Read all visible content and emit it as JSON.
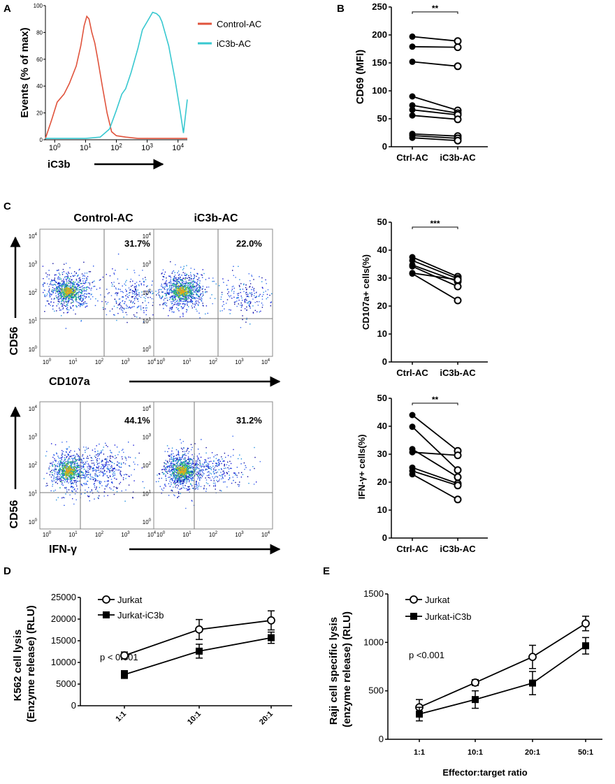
{
  "panels": {
    "A": {
      "label": "A"
    },
    "B": {
      "label": "B"
    },
    "C": {
      "label": "C"
    },
    "D": {
      "label": "D"
    },
    "E": {
      "label": "E"
    }
  },
  "colors": {
    "control": "#e0533c",
    "ic3b": "#38c8d0",
    "black": "#000000"
  },
  "chart_data": [
    {
      "id": "A",
      "type": "line",
      "title": "",
      "xlabel": "iC3b",
      "ylabel": "Events (% of max)",
      "xscale": "log",
      "xlim": [
        0.5,
        20000
      ],
      "ylim": [
        0,
        100
      ],
      "yticks": [
        "0",
        "20",
        "40",
        "60",
        "80",
        "100"
      ],
      "xticks": [
        "10^0",
        "10^1",
        "10^2",
        "10^3",
        "10^4"
      ],
      "legend": [
        "Control-AC",
        "iC3b-AC"
      ],
      "legend_position": "right",
      "series": [
        {
          "name": "Control-AC",
          "color": "#e0533c",
          "x": [
            0.5,
            0.8,
            1.2,
            2,
            3,
            5,
            7,
            9,
            11,
            13,
            16,
            20,
            25,
            35,
            50,
            70,
            100,
            200,
            500,
            1000,
            5000,
            20000
          ],
          "y": [
            1,
            15,
            28,
            34,
            42,
            55,
            70,
            85,
            92,
            90,
            80,
            72,
            60,
            40,
            20,
            6,
            3,
            2,
            1,
            1,
            1,
            1
          ]
        },
        {
          "name": "iC3b-AC",
          "color": "#38c8d0",
          "x": [
            0.5,
            1,
            10,
            30,
            60,
            100,
            150,
            200,
            300,
            500,
            700,
            1000,
            1500,
            2000,
            2500,
            3000,
            5000,
            8000,
            12000,
            15000,
            20000
          ],
          "y": [
            1,
            1,
            1,
            2,
            8,
            22,
            34,
            38,
            50,
            68,
            82,
            88,
            95,
            94,
            92,
            88,
            70,
            45,
            20,
            5,
            30
          ]
        }
      ]
    },
    {
      "id": "B",
      "type": "scatter",
      "title": "",
      "ylabel": "CD69 (MFI)",
      "categories": [
        "Ctrl-AC",
        "iC3b-AC"
      ],
      "ylim": [
        0,
        250
      ],
      "yticks": [
        "0",
        "50",
        "100",
        "150",
        "200",
        "250"
      ],
      "significance": "**",
      "pairs": [
        [
          197,
          189
        ],
        [
          179,
          178
        ],
        [
          152,
          144
        ],
        [
          90,
          65
        ],
        [
          74,
          60
        ],
        [
          66,
          57
        ],
        [
          56,
          49
        ],
        [
          23,
          19
        ],
        [
          20,
          15
        ],
        [
          16,
          11
        ]
      ]
    },
    {
      "id": "C-CD107a",
      "type": "scatter",
      "title": "",
      "ylabel": "CD107a+ cells(%)",
      "categories": [
        "Ctrl-AC",
        "iC3b-AC"
      ],
      "ylim": [
        0,
        50
      ],
      "yticks": [
        "0",
        "10",
        "20",
        "30",
        "40",
        "50"
      ],
      "significance": "***",
      "pairs": [
        [
          37.5,
          30.5
        ],
        [
          36.3,
          29.8
        ],
        [
          34.7,
          28.8
        ],
        [
          34.2,
          27.0
        ],
        [
          31.8,
          29.4
        ],
        [
          31.6,
          22.0
        ]
      ]
    },
    {
      "id": "C-IFNg",
      "type": "scatter",
      "title": "",
      "ylabel": "IFN-γ+ cells(%)",
      "categories": [
        "Ctrl-AC",
        "iC3b-AC"
      ],
      "ylim": [
        0,
        50
      ],
      "yticks": [
        "0",
        "10",
        "20",
        "30",
        "40",
        "50"
      ],
      "significance": "**",
      "pairs": [
        [
          44.0,
          31.2
        ],
        [
          39.8,
          24.3
        ],
        [
          31.8,
          21.8
        ],
        [
          30.7,
          29.6
        ],
        [
          25.2,
          19.5
        ],
        [
          24.0,
          18.8
        ],
        [
          22.8,
          13.8
        ]
      ]
    },
    {
      "id": "D",
      "type": "line",
      "title": "",
      "ylabel": "K562 cell lysis (Enzyme release) (RLU)",
      "categories": [
        "1:1",
        "10:1",
        "20:1"
      ],
      "ylim": [
        0,
        25000
      ],
      "yticks": [
        "0",
        "5000",
        "10000",
        "15000",
        "20000",
        "25000"
      ],
      "annotation": "p < 0.001",
      "series": [
        {
          "name": "Jurkat",
          "marker": "open-circle",
          "values": [
            11600,
            17600,
            19700
          ],
          "errors": [
            800,
            2300,
            2200
          ]
        },
        {
          "name": "Jurkat-iC3b",
          "marker": "filled-square",
          "values": [
            7200,
            12600,
            15700
          ],
          "errors": [
            900,
            1600,
            1300
          ]
        }
      ]
    },
    {
      "id": "E",
      "type": "line",
      "title": "",
      "xlabel": "Effector:target ratio",
      "ylabel": "Raji cell specific lysis (enzyme release) (RLU)",
      "categories": [
        "1:1",
        "10:1",
        "20:1",
        "50:1"
      ],
      "ylim": [
        0,
        1500
      ],
      "yticks": [
        "0",
        "500",
        "1000",
        "1500"
      ],
      "annotation": "p <0.001",
      "series": [
        {
          "name": "Jurkat",
          "marker": "open-circle",
          "values": [
            330,
            585,
            850,
            1195
          ],
          "errors": [
            80,
            30,
            120,
            75
          ]
        },
        {
          "name": "Jurkat-iC3b",
          "marker": "filled-square",
          "values": [
            260,
            410,
            580,
            965
          ],
          "errors": [
            70,
            90,
            120,
            85
          ]
        }
      ]
    }
  ],
  "flow": {
    "col_titles": [
      "Control-AC",
      "iC3b-AC"
    ],
    "y_axis": "CD56",
    "x_axes": [
      "CD107a",
      "IFN-γ"
    ],
    "tick_exponents": [
      "0",
      "1",
      "2",
      "3",
      "4"
    ],
    "tick_base": "10",
    "plots": [
      {
        "id": "cd107a-control",
        "pct": "31.7%"
      },
      {
        "id": "cd107a-ic3b",
        "pct": "22.0%"
      },
      {
        "id": "ifng-control",
        "pct": "44.1%"
      },
      {
        "id": "ifng-ic3b",
        "pct": "31.2%"
      }
    ]
  }
}
